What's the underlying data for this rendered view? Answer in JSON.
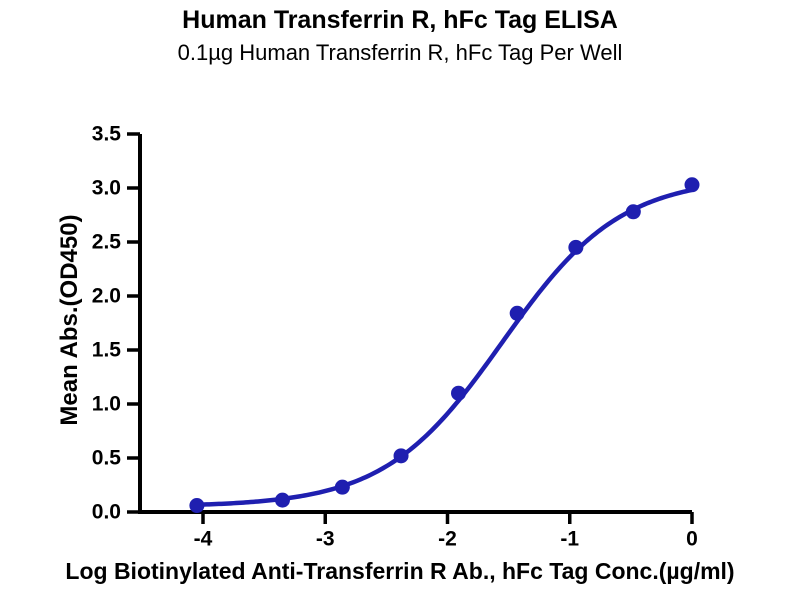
{
  "chart_data": {
    "type": "scatter",
    "title": "Human Transferrin R, hFc Tag ELISA",
    "subtitle": "0.1µg Human Transferrin R, hFc Tag Per Well",
    "xlabel": "Log Biotinylated Anti-Transferrin R Ab., hFc Tag Conc.(µg/ml)",
    "ylabel": "Mean Abs.(OD450)",
    "points": {
      "x": [
        -4.05,
        -3.35,
        -2.86,
        -2.38,
        -1.91,
        -1.43,
        -0.95,
        -0.48,
        0.0
      ],
      "y": [
        0.06,
        0.11,
        0.23,
        0.52,
        1.1,
        1.84,
        2.45,
        2.78,
        3.03
      ]
    },
    "fit_curve": {
      "model": "4PL-sigmoid",
      "bottom": 0.05,
      "top": 3.1,
      "logEC50": -1.55,
      "hill": 0.9,
      "x_start": -4.05,
      "x_end": 0.0
    },
    "xticks": [
      {
        "value": -4,
        "label": "-4"
      },
      {
        "value": -3,
        "label": "-3"
      },
      {
        "value": -2,
        "label": "-2"
      },
      {
        "value": -1,
        "label": "-1"
      },
      {
        "value": 0,
        "label": "0"
      }
    ],
    "yticks": [
      {
        "value": 0.0,
        "label": "0.0"
      },
      {
        "value": 0.5,
        "label": "0.5"
      },
      {
        "value": 1.0,
        "label": "1.0"
      },
      {
        "value": 1.5,
        "label": "1.5"
      },
      {
        "value": 2.0,
        "label": "2.0"
      },
      {
        "value": 2.5,
        "label": "2.5"
      },
      {
        "value": 3.0,
        "label": "3.0"
      },
      {
        "value": 3.5,
        "label": "3.5"
      }
    ],
    "xlim": [
      -4.5,
      0
    ],
    "ylim": [
      0,
      3.5
    ],
    "grid": false,
    "legend": null,
    "series_color": "#1f1fb0",
    "axis_color": "#000000"
  }
}
